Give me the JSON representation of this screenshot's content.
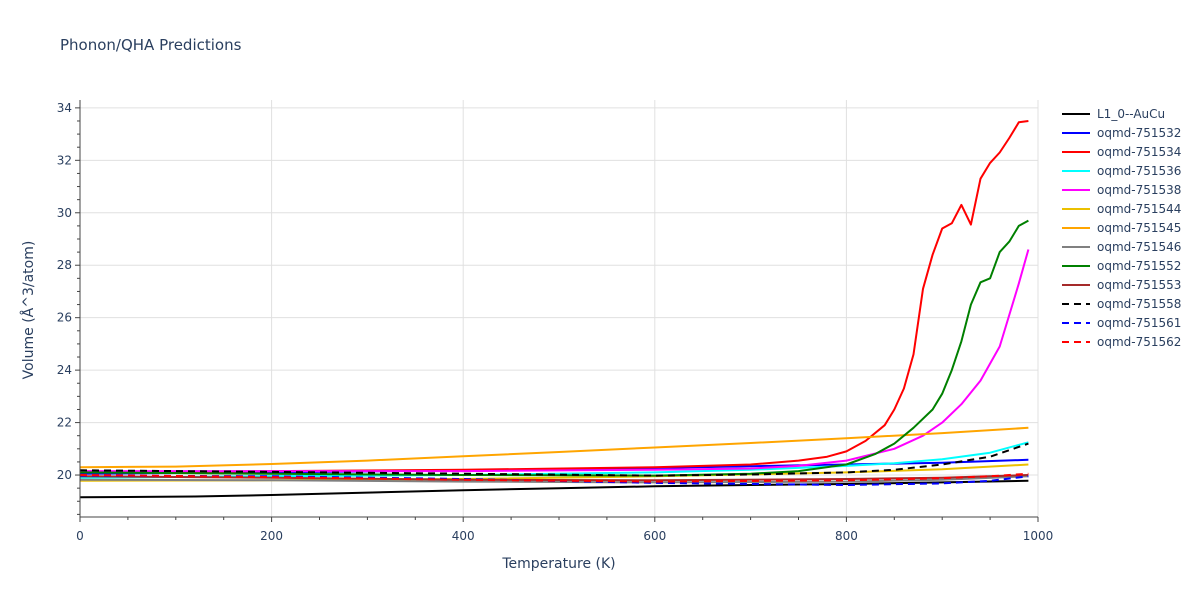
{
  "chart_data": {
    "type": "line",
    "title": "Phonon/QHA Predictions",
    "xlabel": "Temperature (K)",
    "ylabel": "Volume (Å^3/atom)",
    "xlim": [
      0,
      1000
    ],
    "ylim": [
      18.4,
      34.3
    ],
    "xticks": [
      0,
      200,
      400,
      600,
      800,
      1000
    ],
    "yticks": [
      20,
      22,
      24,
      26,
      28,
      30,
      32,
      34
    ],
    "grid": true,
    "legend_position": "right",
    "series": [
      {
        "name": "L1_0--AuCu",
        "color": "#000000",
        "dash": "solid",
        "x": [
          0,
          120,
          200,
          300,
          400,
          500,
          600,
          700,
          800,
          900,
          990
        ],
        "y": [
          19.15,
          19.18,
          19.24,
          19.33,
          19.42,
          19.5,
          19.57,
          19.62,
          19.66,
          19.72,
          19.78
        ]
      },
      {
        "name": "oqmd-751532",
        "color": "#0000ff",
        "dash": "solid",
        "x": [
          0,
          200,
          400,
          600,
          800,
          900,
          990
        ],
        "y": [
          20.05,
          20.1,
          20.18,
          20.27,
          20.4,
          20.47,
          20.58
        ]
      },
      {
        "name": "oqmd-751534",
        "color": "#ff0000",
        "dash": "solid",
        "x": [
          0,
          200,
          400,
          600,
          700,
          750,
          780,
          800,
          820,
          840,
          850,
          860,
          870,
          880,
          890,
          900,
          910,
          920,
          930,
          940,
          950,
          960,
          970,
          980,
          990
        ],
        "y": [
          20.1,
          20.15,
          20.2,
          20.3,
          20.4,
          20.55,
          20.7,
          20.9,
          21.3,
          21.9,
          22.5,
          23.3,
          24.6,
          27.1,
          28.4,
          29.4,
          29.6,
          30.3,
          29.55,
          31.3,
          31.9,
          32.3,
          32.85,
          33.45,
          33.5
        ]
      },
      {
        "name": "oqmd-751536",
        "color": "#00ffff",
        "dash": "solid",
        "x": [
          0,
          200,
          400,
          600,
          700,
          800,
          850,
          900,
          950,
          990
        ],
        "y": [
          19.9,
          19.95,
          20.0,
          20.1,
          20.2,
          20.35,
          20.45,
          20.6,
          20.85,
          21.25
        ]
      },
      {
        "name": "oqmd-751538",
        "color": "#ff00ff",
        "dash": "solid",
        "x": [
          0,
          200,
          400,
          600,
          700,
          750,
          800,
          850,
          880,
          900,
          920,
          940,
          960,
          980,
          990
        ],
        "y": [
          20.15,
          20.15,
          20.15,
          20.2,
          20.25,
          20.35,
          20.55,
          21.0,
          21.5,
          22.0,
          22.7,
          23.6,
          24.9,
          27.3,
          28.6
        ]
      },
      {
        "name": "oqmd-751544",
        "color": "#ebc000",
        "dash": "solid",
        "x": [
          0,
          200,
          400,
          600,
          800,
          900,
          990
        ],
        "y": [
          19.78,
          19.8,
          19.85,
          19.95,
          20.1,
          20.22,
          20.4
        ]
      },
      {
        "name": "oqmd-751545",
        "color": "#ffa500",
        "dash": "solid",
        "x": [
          0,
          100,
          200,
          300,
          400,
          500,
          600,
          700,
          800,
          900,
          990
        ],
        "y": [
          20.3,
          20.32,
          20.42,
          20.55,
          20.72,
          20.88,
          21.05,
          21.22,
          21.4,
          21.6,
          21.8
        ]
      },
      {
        "name": "oqmd-751546",
        "color": "#808080",
        "dash": "solid",
        "x": [
          0,
          200,
          400,
          600,
          800,
          900,
          990
        ],
        "y": [
          19.82,
          19.8,
          19.75,
          19.72,
          19.75,
          19.82,
          19.95
        ]
      },
      {
        "name": "oqmd-751552",
        "color": "#008000",
        "dash": "solid",
        "x": [
          0,
          200,
          400,
          600,
          700,
          750,
          800,
          830,
          850,
          870,
          890,
          900,
          910,
          920,
          930,
          940,
          950,
          960,
          970,
          980,
          990
        ],
        "y": [
          20.1,
          20.05,
          20.0,
          19.98,
          20.05,
          20.15,
          20.4,
          20.8,
          21.2,
          21.8,
          22.5,
          23.1,
          24.0,
          25.1,
          26.5,
          27.35,
          27.5,
          28.5,
          28.9,
          29.5,
          29.7
        ]
      },
      {
        "name": "oqmd-751553",
        "color": "#a52a2a",
        "dash": "solid",
        "x": [
          0,
          200,
          400,
          600,
          800,
          900,
          990
        ],
        "y": [
          19.95,
          19.9,
          19.82,
          19.8,
          19.85,
          19.9,
          20.0
        ]
      },
      {
        "name": "oqmd-751558",
        "color": "#000000",
        "dash": "dash",
        "x": [
          0,
          200,
          400,
          600,
          700,
          800,
          850,
          900,
          950,
          990
        ],
        "y": [
          20.18,
          20.12,
          20.05,
          19.98,
          20.02,
          20.1,
          20.2,
          20.4,
          20.7,
          21.2
        ]
      },
      {
        "name": "oqmd-751561",
        "color": "#0000ff",
        "dash": "dash",
        "x": [
          0,
          200,
          400,
          600,
          800,
          900,
          950,
          990
        ],
        "y": [
          19.98,
          19.95,
          19.85,
          19.7,
          19.62,
          19.68,
          19.78,
          19.95
        ]
      },
      {
        "name": "oqmd-751562",
        "color": "#ff0000",
        "dash": "dash",
        "x": [
          0,
          200,
          400,
          600,
          800,
          900,
          950,
          990
        ],
        "y": [
          20.0,
          19.92,
          19.82,
          19.75,
          19.8,
          19.88,
          19.95,
          20.05
        ]
      }
    ]
  }
}
